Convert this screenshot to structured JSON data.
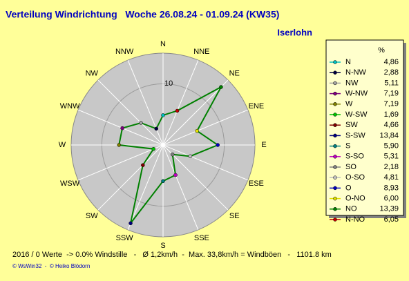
{
  "chart_data": {
    "type": "radar",
    "title": "Verteilung Windrichtung   Woche 26.08.24 - 01.09.24 (KW35)",
    "subtitle": "Iserlohn",
    "direction_labels": [
      "N",
      "NNE",
      "NE",
      "ENE",
      "E",
      "ESE",
      "SE",
      "SSE",
      "S",
      "SSW",
      "SW",
      "WSW",
      "W",
      "WNW",
      "NW",
      "NNW"
    ],
    "legend_header": "%",
    "categories": [
      "N",
      "N-NW",
      "NW",
      "W-NW",
      "W",
      "W-SW",
      "SW",
      "S-SW",
      "S",
      "S-SO",
      "SO",
      "O-SO",
      "O",
      "O-NO",
      "NO",
      "N-NO"
    ],
    "values": [
      4.86,
      2.88,
      5.11,
      7.19,
      7.19,
      1.69,
      4.66,
      13.84,
      5.9,
      5.31,
      2.18,
      4.81,
      8.93,
      6.0,
      13.39,
      6.05
    ],
    "value_labels": [
      "4,86",
      "2,88",
      "5,11",
      "7,19",
      "7,19",
      "1,69",
      "4,66",
      "13,84",
      "5,90",
      "5,31",
      "2,18",
      "4,81",
      "8,93",
      "6,00",
      "13,39",
      "6,05"
    ],
    "colors": [
      "#00c0c0",
      "#000040",
      "#a0a0a0",
      "#800080",
      "#808000",
      "#00c000",
      "#800000",
      "#000080",
      "#008080",
      "#c000c0",
      "#808080",
      "#c0c0c0",
      "#0000c0",
      "#e0e000",
      "#008000",
      "#c00000"
    ],
    "line_color": "#008000",
    "rlim": [
      0,
      15
    ],
    "rticks": [
      10
    ],
    "footer": "2016 / 0 Werte  -> 0.0% Windstille   -   Ø 1,2km/h  -  Max. 33,8km/h = Windböen   -   1101.8 km",
    "credit": "© WsWin32  -  © Heiko Blödorn"
  }
}
